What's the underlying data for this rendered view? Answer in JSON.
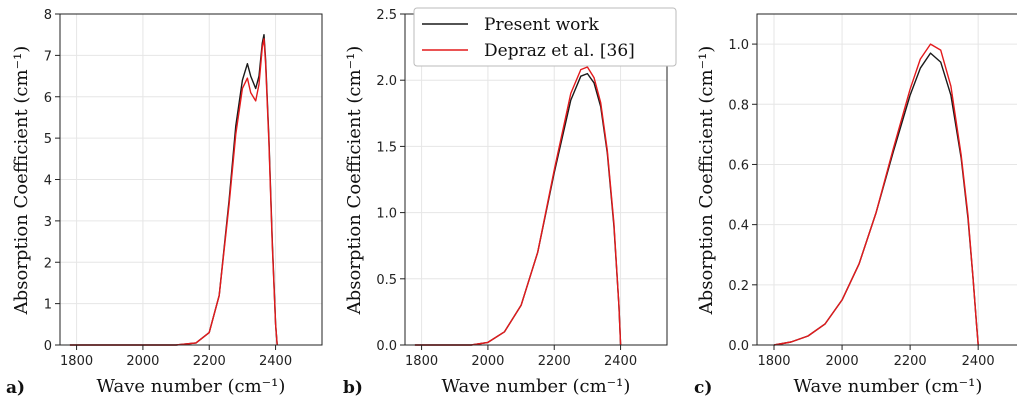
{
  "colors": {
    "present": "#1a1a1a",
    "depraz": "#e31a1c",
    "grid": "#e6e6e6"
  },
  "legend": {
    "placement": "top",
    "entries": [
      "Present work",
      "Depraz et al. [36]"
    ]
  },
  "chart_data": [
    {
      "type": "line",
      "panel_label": "a)",
      "xlabel": "Wave number (cm⁻¹)",
      "ylabel": "Absorption Coefficient (cm⁻¹)",
      "xlim": [
        1750,
        2540
      ],
      "ylim": [
        0,
        8
      ],
      "xticks": [
        1800,
        2000,
        2200,
        2400
      ],
      "yticks": [
        0,
        1,
        2,
        3,
        4,
        5,
        6,
        7,
        8
      ],
      "ytick_labels": [
        "0",
        "1",
        "2",
        "3",
        "4",
        "5",
        "6",
        "7",
        "8"
      ],
      "grid": true,
      "series": [
        {
          "name": "Present work",
          "x": [
            1780,
            2100,
            2160,
            2200,
            2230,
            2260,
            2280,
            2300,
            2315,
            2325,
            2340,
            2350,
            2360,
            2365,
            2370,
            2380,
            2390,
            2400,
            2405
          ],
          "y": [
            0,
            0,
            0.05,
            0.3,
            1.2,
            3.5,
            5.3,
            6.4,
            6.8,
            6.5,
            6.2,
            6.5,
            7.3,
            7.5,
            6.9,
            5.0,
            2.5,
            0.5,
            0
          ]
        },
        {
          "name": "Depraz et al. [36]",
          "x": [
            1780,
            2100,
            2160,
            2200,
            2230,
            2260,
            2280,
            2300,
            2315,
            2325,
            2340,
            2350,
            2360,
            2365,
            2370,
            2380,
            2390,
            2400,
            2405
          ],
          "y": [
            0,
            0,
            0.05,
            0.3,
            1.2,
            3.4,
            5.1,
            6.2,
            6.45,
            6.1,
            5.9,
            6.3,
            7.2,
            7.4,
            6.8,
            4.9,
            2.4,
            0.5,
            0
          ]
        }
      ]
    },
    {
      "type": "line",
      "panel_label": "b)",
      "xlabel": "Wave number (cm⁻¹)",
      "ylabel": "Absorption Coefficient (cm⁻¹)",
      "xlim": [
        1750,
        2540
      ],
      "ylim": [
        0,
        2.5
      ],
      "xticks": [
        1800,
        2000,
        2200,
        2400
      ],
      "yticks": [
        0,
        0.5,
        1,
        1.5,
        2,
        2.5
      ],
      "ytick_labels": [
        "0.0",
        "0.5",
        "1.0",
        "1.5",
        "2.0",
        "2.5"
      ],
      "grid": true,
      "series": [
        {
          "name": "Present work",
          "x": [
            1780,
            1950,
            2000,
            2050,
            2100,
            2150,
            2200,
            2250,
            2280,
            2300,
            2320,
            2340,
            2360,
            2380,
            2395,
            2400
          ],
          "y": [
            0,
            0,
            0.02,
            0.1,
            0.3,
            0.7,
            1.3,
            1.85,
            2.03,
            2.05,
            1.98,
            1.8,
            1.45,
            0.9,
            0.3,
            0
          ]
        },
        {
          "name": "Depraz et al. [36]",
          "x": [
            1780,
            1950,
            2000,
            2050,
            2100,
            2150,
            2200,
            2250,
            2280,
            2300,
            2320,
            2340,
            2360,
            2380,
            2395,
            2400
          ],
          "y": [
            0,
            0,
            0.02,
            0.1,
            0.3,
            0.7,
            1.32,
            1.9,
            2.08,
            2.1,
            2.02,
            1.83,
            1.47,
            0.92,
            0.3,
            0
          ]
        }
      ]
    },
    {
      "type": "line",
      "panel_label": "c)",
      "xlabel": "Wave number (cm⁻¹)",
      "ylabel": "Absorption Coefficient (cm⁻¹)",
      "xlim": [
        1750,
        2520
      ],
      "ylim": [
        0,
        1.1
      ],
      "xticks": [
        1800,
        2000,
        2200,
        2400
      ],
      "yticks": [
        0,
        0.2,
        0.4,
        0.6,
        0.8,
        1.0
      ],
      "ytick_labels": [
        "0.0",
        "0.2",
        "0.4",
        "0.6",
        "0.8",
        "1.0"
      ],
      "grid": true,
      "series": [
        {
          "name": "Present work",
          "x": [
            1800,
            1850,
            1900,
            1950,
            2000,
            2050,
            2100,
            2150,
            2200,
            2230,
            2260,
            2290,
            2320,
            2350,
            2370,
            2385,
            2395,
            2400
          ],
          "y": [
            0,
            0.01,
            0.03,
            0.07,
            0.15,
            0.27,
            0.44,
            0.64,
            0.83,
            0.92,
            0.97,
            0.94,
            0.83,
            0.62,
            0.42,
            0.22,
            0.07,
            0
          ]
        },
        {
          "name": "Depraz et al. [36]",
          "x": [
            1800,
            1850,
            1900,
            1950,
            2000,
            2050,
            2100,
            2150,
            2200,
            2230,
            2260,
            2290,
            2320,
            2350,
            2370,
            2385,
            2395,
            2400
          ],
          "y": [
            0,
            0.01,
            0.03,
            0.07,
            0.15,
            0.27,
            0.44,
            0.65,
            0.85,
            0.95,
            1.0,
            0.98,
            0.86,
            0.63,
            0.43,
            0.22,
            0.07,
            0
          ]
        }
      ]
    }
  ]
}
